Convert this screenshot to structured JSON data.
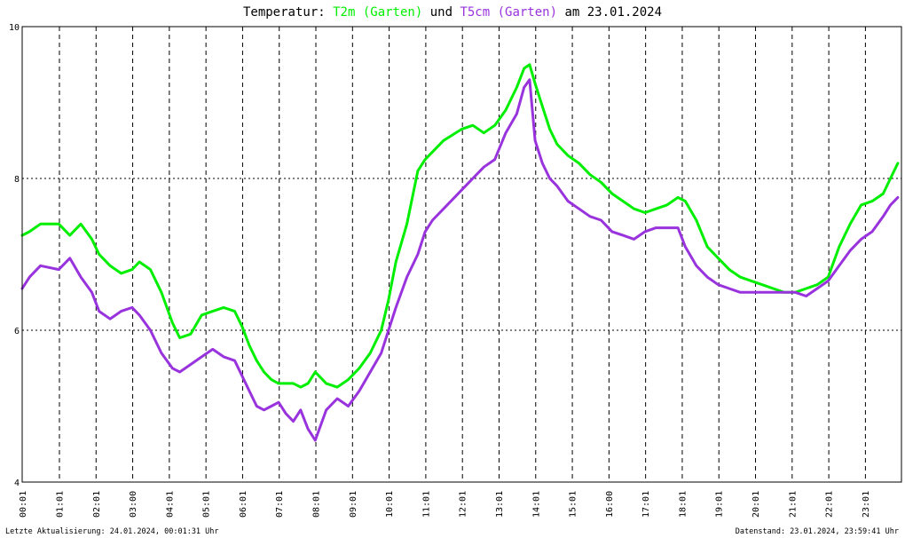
{
  "chart_data": {
    "type": "line",
    "title": {
      "prefix": "Temperatur: ",
      "series1": "T2m (Garten)",
      "mid": " und ",
      "series2": "T5cm (Garten)",
      "suffix": " am 23.01.2024"
    },
    "xlabel": "",
    "ylabel": "",
    "ylim": [
      4,
      10
    ],
    "yticks": [
      "10",
      "8",
      "6",
      "4"
    ],
    "xlim_hours": [
      0,
      24
    ],
    "xticks": [
      "00:01",
      "01:01",
      "02:01",
      "03:00",
      "04:01",
      "05:01",
      "06:01",
      "07:01",
      "08:01",
      "09:01",
      "10:01",
      "11:01",
      "12:01",
      "13:01",
      "14:01",
      "15:01",
      "16:00",
      "17:01",
      "18:01",
      "19:01",
      "20:01",
      "21:01",
      "22:01",
      "23:01"
    ],
    "grid": true,
    "colors": {
      "T2m": "#00ee00",
      "T5cm": "#9933dd",
      "grid": "#000000"
    },
    "series": [
      {
        "name": "T2m (Garten)",
        "hours": [
          0,
          0.2,
          0.5,
          1,
          1.3,
          1.6,
          1.9,
          2.1,
          2.4,
          2.7,
          3.0,
          3.2,
          3.5,
          3.8,
          4.1,
          4.3,
          4.6,
          4.9,
          5.2,
          5.5,
          5.8,
          6.0,
          6.2,
          6.4,
          6.6,
          6.8,
          7.0,
          7.2,
          7.4,
          7.6,
          7.8,
          8.0,
          8.3,
          8.6,
          8.9,
          9.2,
          9.5,
          9.8,
          10.0,
          10.2,
          10.5,
          10.8,
          11.0,
          11.2,
          11.5,
          12.0,
          12.3,
          12.6,
          12.9,
          13.2,
          13.5,
          13.7,
          13.85,
          14.0,
          14.2,
          14.4,
          14.6,
          14.9,
          15.2,
          15.5,
          15.8,
          16.1,
          16.4,
          16.7,
          17.0,
          17.3,
          17.6,
          17.9,
          18.1,
          18.4,
          18.7,
          19.0,
          19.3,
          19.6,
          19.9,
          20.2,
          20.5,
          20.8,
          21.1,
          21.4,
          21.7,
          22.0,
          22.3,
          22.6,
          22.9,
          23.2,
          23.5,
          23.7,
          23.9
        ],
        "values": [
          7.25,
          7.3,
          7.4,
          7.4,
          7.25,
          7.4,
          7.2,
          7.0,
          6.85,
          6.75,
          6.8,
          6.9,
          6.8,
          6.5,
          6.1,
          5.9,
          5.95,
          6.2,
          6.25,
          6.3,
          6.25,
          6.05,
          5.8,
          5.6,
          5.45,
          5.35,
          5.3,
          5.3,
          5.3,
          5.25,
          5.3,
          5.45,
          5.3,
          5.25,
          5.35,
          5.5,
          5.7,
          6.0,
          6.4,
          6.9,
          7.4,
          8.1,
          8.25,
          8.35,
          8.5,
          8.65,
          8.7,
          8.6,
          8.7,
          8.9,
          9.2,
          9.45,
          9.5,
          9.25,
          8.95,
          8.65,
          8.45,
          8.3,
          8.2,
          8.05,
          7.95,
          7.8,
          7.7,
          7.6,
          7.55,
          7.6,
          7.65,
          7.75,
          7.7,
          7.45,
          7.1,
          6.95,
          6.8,
          6.7,
          6.65,
          6.6,
          6.55,
          6.5,
          6.5,
          6.55,
          6.6,
          6.7,
          7.1,
          7.4,
          7.65,
          7.7,
          7.8,
          8.0,
          8.2
        ]
      },
      {
        "name": "T5cm (Garten)",
        "hours": [
          0,
          0.2,
          0.5,
          1,
          1.3,
          1.6,
          1.9,
          2.1,
          2.4,
          2.7,
          3.0,
          3.2,
          3.5,
          3.8,
          4.1,
          4.3,
          4.6,
          4.9,
          5.2,
          5.5,
          5.8,
          6.0,
          6.2,
          6.4,
          6.6,
          6.8,
          7.0,
          7.2,
          7.4,
          7.6,
          7.8,
          8.0,
          8.3,
          8.6,
          8.9,
          9.2,
          9.5,
          9.8,
          10.0,
          10.2,
          10.5,
          10.8,
          11.0,
          11.2,
          11.5,
          12.0,
          12.3,
          12.6,
          12.9,
          13.2,
          13.5,
          13.7,
          13.85,
          14.0,
          14.2,
          14.4,
          14.6,
          14.9,
          15.2,
          15.5,
          15.8,
          16.1,
          16.4,
          16.7,
          17.0,
          17.3,
          17.6,
          17.9,
          18.1,
          18.4,
          18.7,
          19.0,
          19.3,
          19.6,
          19.9,
          20.2,
          20.5,
          20.8,
          21.1,
          21.4,
          21.7,
          22.0,
          22.3,
          22.6,
          22.9,
          23.2,
          23.5,
          23.7,
          23.9
        ],
        "values": [
          6.55,
          6.7,
          6.85,
          6.8,
          6.95,
          6.7,
          6.5,
          6.25,
          6.15,
          6.25,
          6.3,
          6.2,
          6.0,
          5.7,
          5.5,
          5.45,
          5.55,
          5.65,
          5.75,
          5.65,
          5.6,
          5.4,
          5.2,
          5.0,
          4.95,
          5.0,
          5.05,
          4.9,
          4.8,
          4.95,
          4.7,
          4.55,
          4.95,
          5.1,
          5.0,
          5.2,
          5.45,
          5.7,
          6.0,
          6.3,
          6.7,
          7.0,
          7.3,
          7.45,
          7.6,
          7.85,
          8.0,
          8.15,
          8.25,
          8.6,
          8.85,
          9.2,
          9.3,
          8.5,
          8.2,
          8.0,
          7.9,
          7.7,
          7.6,
          7.5,
          7.45,
          7.3,
          7.25,
          7.2,
          7.3,
          7.35,
          7.35,
          7.35,
          7.1,
          6.85,
          6.7,
          6.6,
          6.55,
          6.5,
          6.5,
          6.5,
          6.5,
          6.5,
          6.5,
          6.45,
          6.55,
          6.65,
          6.85,
          7.05,
          7.2,
          7.3,
          7.5,
          7.65,
          7.75
        ]
      }
    ]
  },
  "footer": {
    "left": "Letzte Aktualisierung: 24.01.2024, 00:01:31 Uhr",
    "right": "Datenstand: 23.01.2024, 23:59:41 Uhr"
  }
}
